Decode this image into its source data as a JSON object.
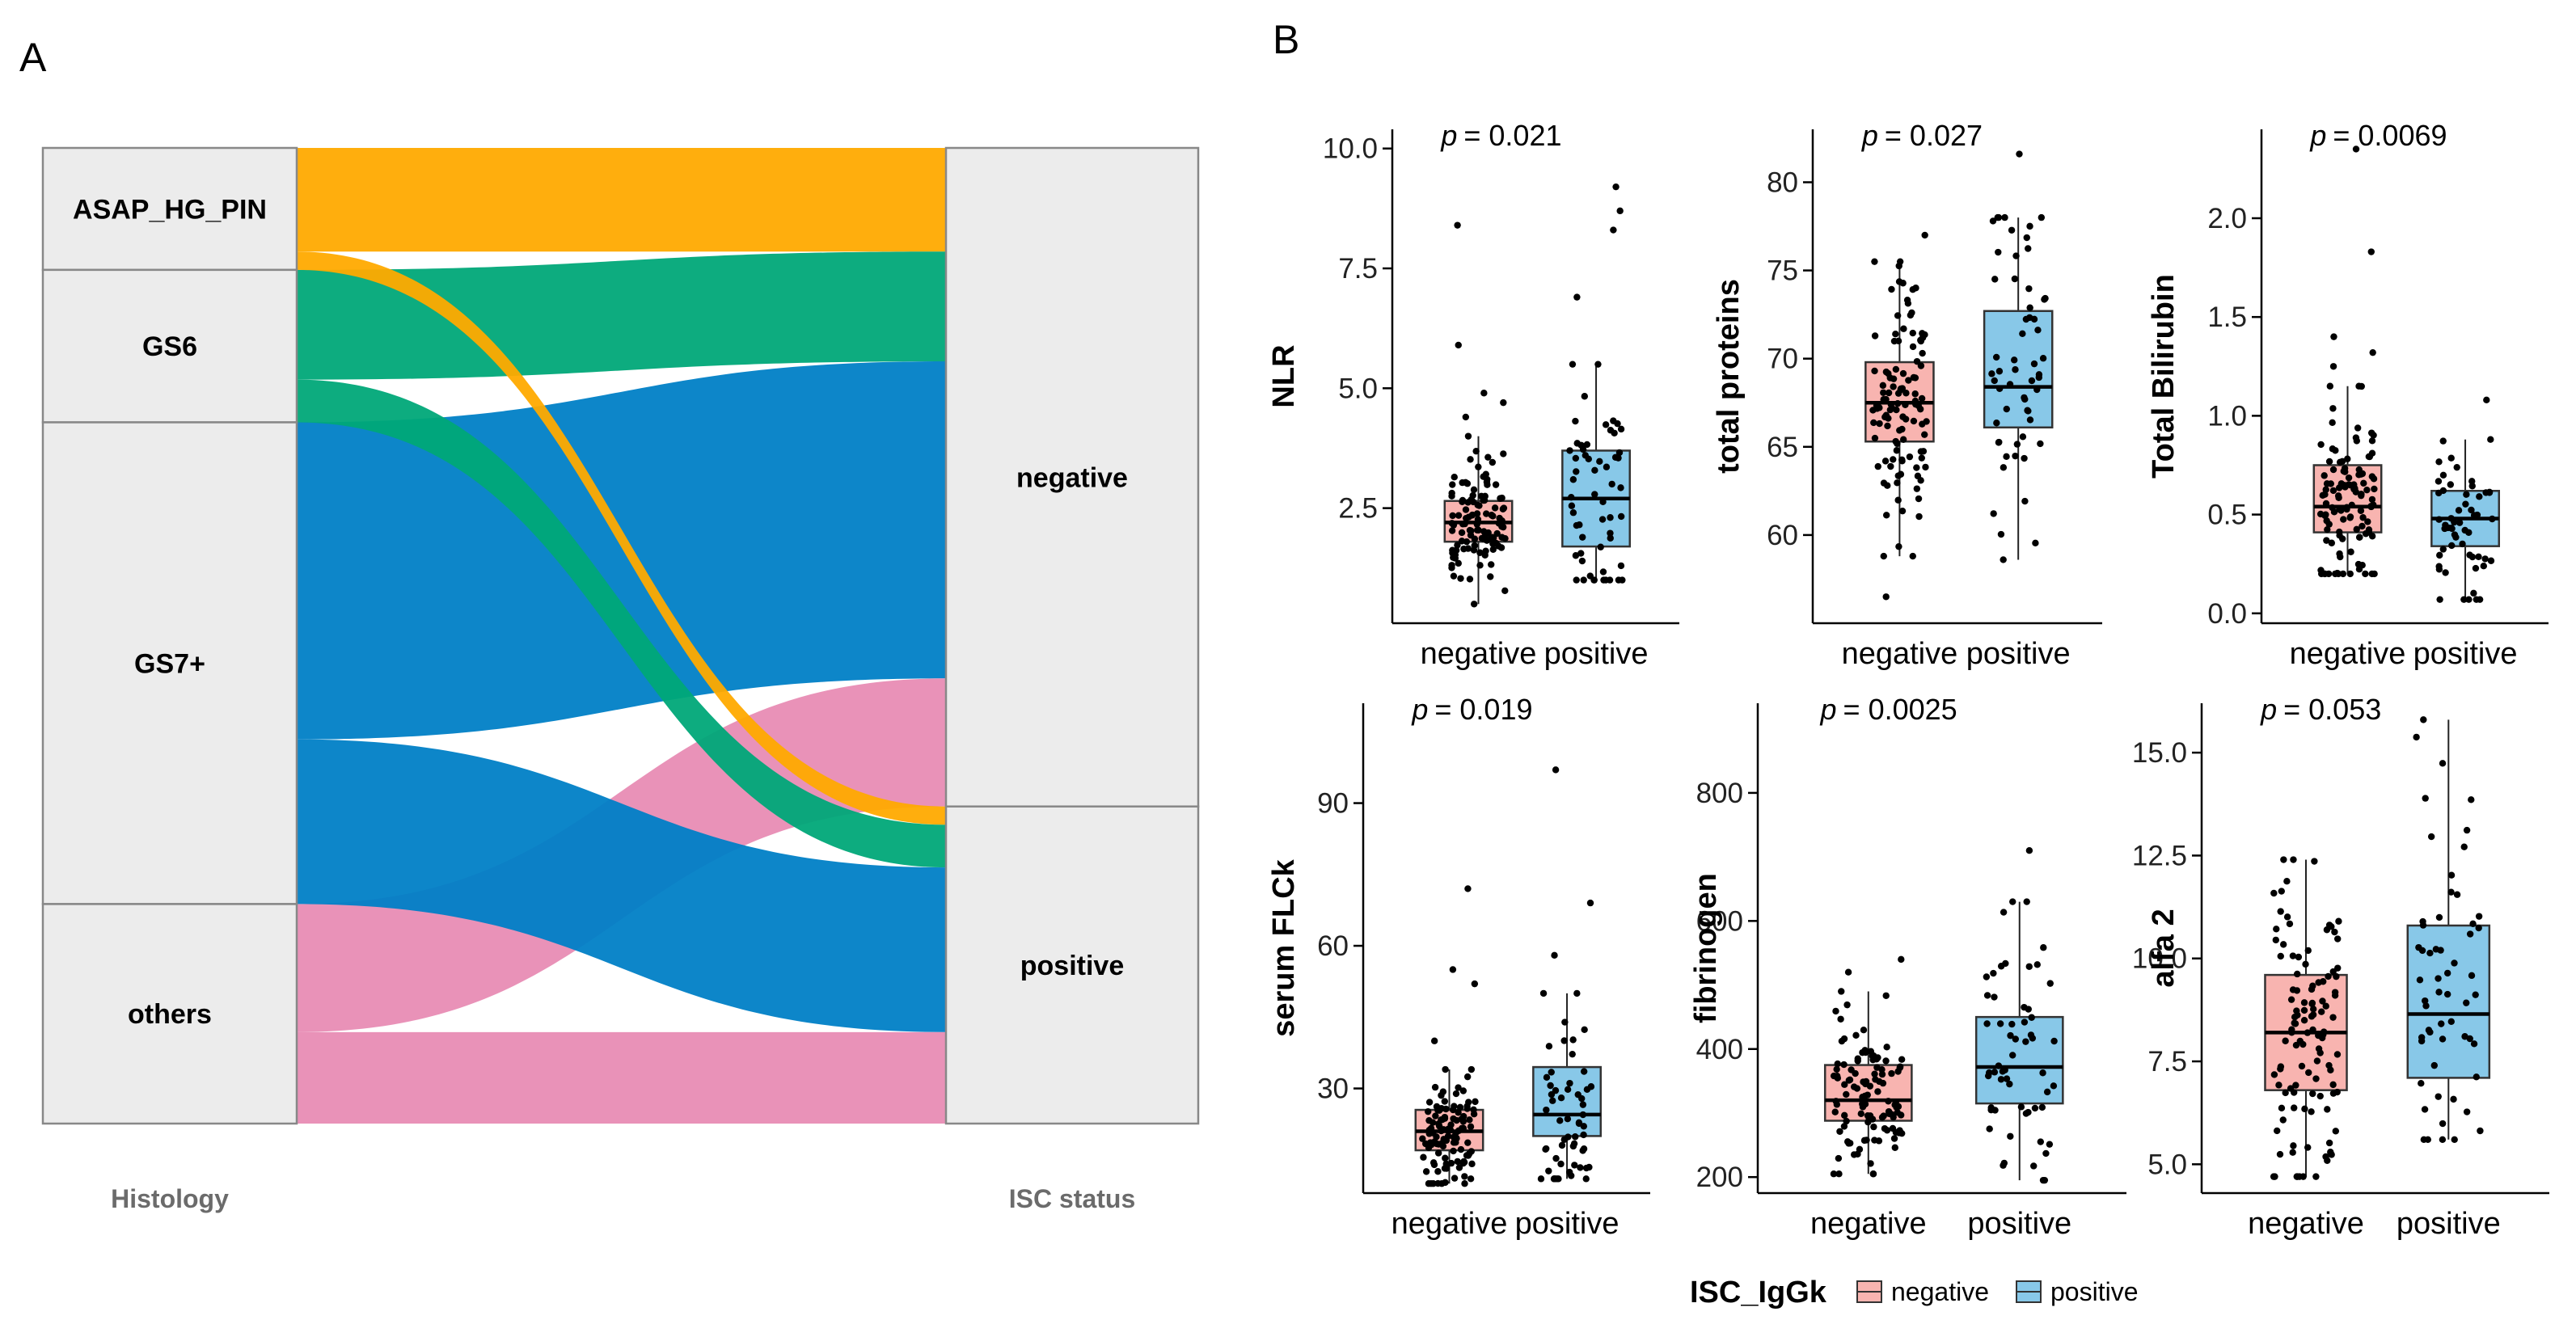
{
  "panel_labels": {
    "a": "A",
    "b": "B"
  },
  "sankey": {
    "axis_labels": {
      "left": "Histology",
      "right": "ISC status"
    },
    "left_nodes": [
      {
        "id": "asap",
        "label": "ASAP_HG_PIN",
        "color": "#FFAA00"
      },
      {
        "id": "gs6",
        "label": "GS6",
        "color": "#00A878"
      },
      {
        "id": "gs7",
        "label": "GS7+",
        "color": "#0080C6"
      },
      {
        "id": "others",
        "label": "others",
        "color": "#E88CB4"
      }
    ],
    "right_nodes": [
      {
        "id": "neg",
        "label": "negative"
      },
      {
        "id": "pos",
        "label": "positive"
      }
    ],
    "flows": [
      {
        "from": "asap",
        "to": "neg",
        "value": 17
      },
      {
        "from": "asap",
        "to": "pos",
        "value": 3
      },
      {
        "from": "gs6",
        "to": "neg",
        "value": 18
      },
      {
        "from": "gs6",
        "to": "pos",
        "value": 7
      },
      {
        "from": "gs7",
        "to": "neg",
        "value": 52
      },
      {
        "from": "gs7",
        "to": "pos",
        "value": 27
      },
      {
        "from": "others",
        "to": "neg",
        "value": 21
      },
      {
        "from": "others",
        "to": "pos",
        "value": 15
      }
    ]
  },
  "chart_data": {
    "type": "boxplot",
    "legend": {
      "title": "ISC_IgGk",
      "entries": [
        {
          "label": "negative",
          "color": "#F8B4B0"
        },
        {
          "label": "positive",
          "color": "#88C8E8"
        }
      ]
    },
    "groups": [
      "negative",
      "positive"
    ],
    "panels": [
      {
        "id": "nlr",
        "ylabel": "NLR",
        "p_prefix": "p",
        "p_value": "= 0.021",
        "ylim": [
          0.1,
          10.4
        ],
        "yticks": [
          2.5,
          5.0,
          7.5,
          10.0
        ],
        "tick_decimals": 1,
        "boxes": [
          {
            "group": "negative",
            "min": 0.5,
            "q1": 1.8,
            "median": 2.2,
            "q3": 2.65,
            "max": 4.0,
            "outliers": [
              4.4,
              4.7,
              4.9,
              5.9,
              8.4
            ],
            "n": 110,
            "seed": 11
          },
          {
            "group": "positive",
            "min": 1.0,
            "q1": 1.7,
            "median": 2.7,
            "q3": 3.7,
            "max": 5.5,
            "outliers": [
              6.9,
              8.3,
              8.7,
              9.2
            ],
            "n": 55,
            "seed": 12
          }
        ]
      },
      {
        "id": "tp",
        "ylabel": "total proteins",
        "p_prefix": "p",
        "p_value": "= 0.027",
        "ylim": [
          55.0,
          83.0
        ],
        "yticks": [
          60,
          65,
          70,
          75,
          80
        ],
        "tick_decimals": 0,
        "boxes": [
          {
            "group": "negative",
            "min": 58.8,
            "q1": 65.3,
            "median": 67.5,
            "q3": 69.8,
            "max": 75.5,
            "outliers": [
              56.5,
              77.0
            ],
            "n": 110,
            "seed": 21
          },
          {
            "group": "positive",
            "min": 58.6,
            "q1": 66.1,
            "median": 68.4,
            "q3": 72.7,
            "max": 78.0,
            "outliers": [
              81.6
            ],
            "n": 55,
            "seed": 22
          }
        ]
      },
      {
        "id": "tb",
        "ylabel": "Total Bilirubin",
        "p_prefix": "p",
        "p_value": "= 0.0069",
        "ylim": [
          -0.05,
          2.45
        ],
        "yticks": [
          0.0,
          0.5,
          1.0,
          1.5,
          2.0
        ],
        "tick_decimals": 1,
        "boxes": [
          {
            "group": "negative",
            "min": 0.2,
            "q1": 0.41,
            "median": 0.54,
            "q3": 0.75,
            "max": 1.15,
            "outliers": [
              1.25,
              1.32,
              1.4,
              1.83,
              2.35
            ],
            "n": 110,
            "seed": 31
          },
          {
            "group": "positive",
            "min": 0.07,
            "q1": 0.34,
            "median": 0.48,
            "q3": 0.62,
            "max": 0.88,
            "outliers": [
              1.08
            ],
            "n": 55,
            "seed": 32
          }
        ]
      },
      {
        "id": "flc",
        "ylabel": "serum FLCk",
        "p_prefix": "p",
        "p_value": "= 0.019",
        "ylim": [
          8.0,
          111.0
        ],
        "yticks": [
          30,
          60,
          90
        ],
        "tick_decimals": 0,
        "boxes": [
          {
            "group": "negative",
            "min": 10.0,
            "q1": 17.0,
            "median": 21.0,
            "q3": 25.5,
            "max": 34.0,
            "outliers": [
              40.0,
              52.0,
              55.0,
              72.0
            ],
            "n": 110,
            "seed": 41
          },
          {
            "group": "positive",
            "min": 11.0,
            "q1": 20.0,
            "median": 24.5,
            "q3": 34.5,
            "max": 50.0,
            "outliers": [
              58.0,
              69.0,
              97.0
            ],
            "n": 55,
            "seed": 42
          }
        ]
      },
      {
        "id": "fib",
        "ylabel": "fibrinogen",
        "p_prefix": "p",
        "p_value": "= 0.0025",
        "ylim": [
          175.0,
          940.0
        ],
        "yticks": [
          200,
          400,
          600,
          800
        ],
        "tick_decimals": 0,
        "boxes": [
          {
            "group": "negative",
            "min": 205.0,
            "q1": 288.0,
            "median": 320.0,
            "q3": 375.0,
            "max": 490.0,
            "outliers": [
              520.0,
              540.0
            ],
            "n": 110,
            "seed": 51
          },
          {
            "group": "positive",
            "min": 195.0,
            "q1": 315.0,
            "median": 372.0,
            "q3": 450.0,
            "max": 630.0,
            "outliers": [
              710.0
            ],
            "n": 55,
            "seed": 52
          }
        ]
      },
      {
        "id": "alfa2",
        "ylabel": "alfa 2",
        "p_prefix": "p",
        "p_value": "= 0.053",
        "ylim": [
          4.3,
          16.2
        ],
        "yticks": [
          5.0,
          7.5,
          10.0,
          12.5,
          15.0
        ],
        "tick_decimals": 1,
        "boxes": [
          {
            "group": "negative",
            "min": 4.7,
            "q1": 6.8,
            "median": 8.2,
            "q3": 9.6,
            "max": 12.4,
            "outliers": [],
            "n": 110,
            "seed": 61
          },
          {
            "group": "positive",
            "min": 5.6,
            "q1": 7.1,
            "median": 8.65,
            "q3": 10.8,
            "max": 15.8,
            "outliers": [],
            "n": 55,
            "seed": 62
          }
        ]
      }
    ]
  }
}
